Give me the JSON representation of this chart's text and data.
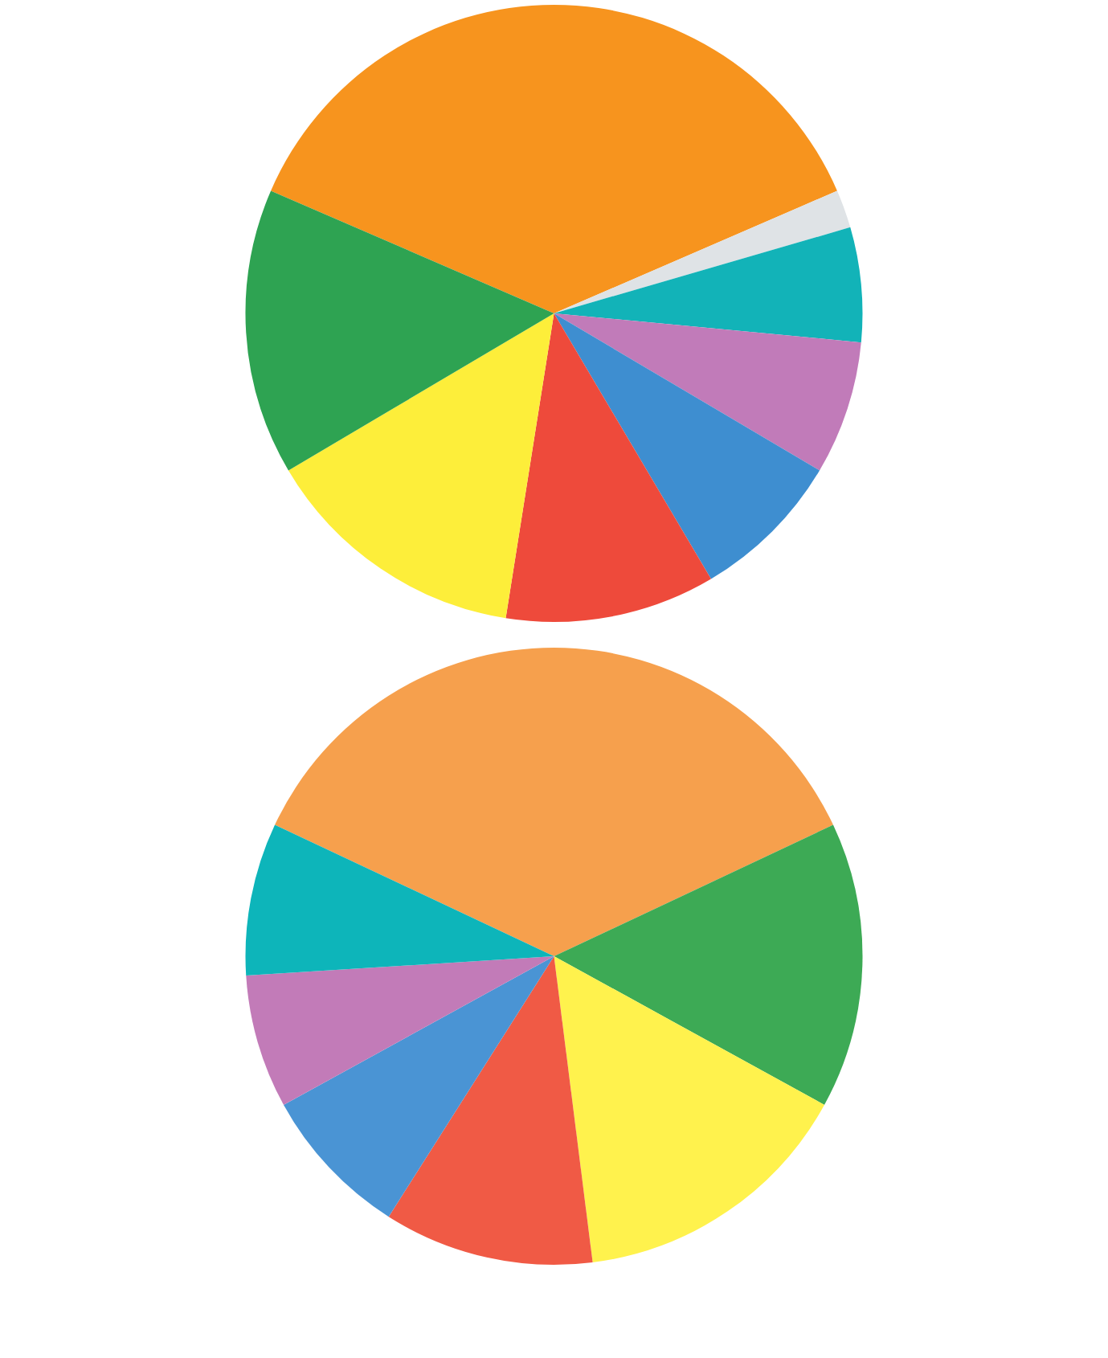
{
  "chart_data": [
    {
      "type": "pie",
      "categories": [
        null,
        null,
        null,
        null,
        null,
        null,
        null,
        null
      ],
      "values": [
        37,
        2,
        6,
        7,
        8,
        11,
        14,
        15
      ],
      "colors": [
        "#f7941e",
        "#dfe3e6",
        "#12b3b8",
        "#c17bb9",
        "#3e8ed0",
        "#ee4a3b",
        "#fdee3a",
        "#2ea352"
      ]
    },
    {
      "type": "pie",
      "categories": [
        null,
        null,
        null,
        null,
        null,
        null,
        null
      ],
      "values": [
        36,
        15,
        15,
        11,
        8,
        7,
        8
      ],
      "colors": [
        "#f6a04d",
        "#3daa55",
        "#fff24d",
        "#f05a45",
        "#4a94d4",
        "#c27bb8",
        "#0db5ba"
      ]
    }
  ]
}
